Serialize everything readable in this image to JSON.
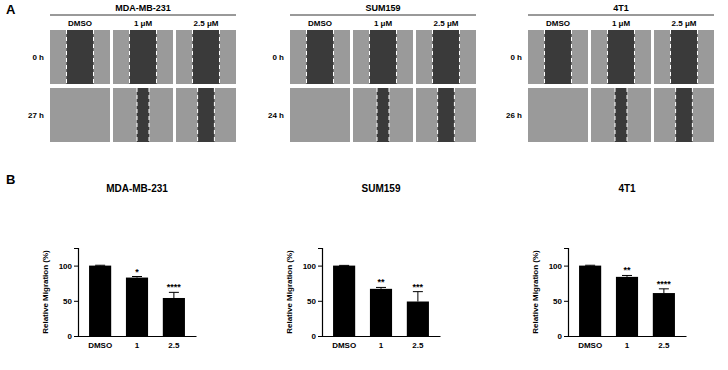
{
  "panel_labels": [
    "A",
    "B"
  ],
  "panel_a": [
    {
      "title": "MDA-MB-231",
      "columns": [
        "DMSO",
        "1 μM",
        "2.5 μM"
      ],
      "rows": [
        "0 h",
        "27 h"
      ]
    },
    {
      "title": "SUM159",
      "columns": [
        "DMSO",
        "1 μM",
        "2.5 μM"
      ],
      "rows": [
        "0 h",
        "24 h"
      ]
    },
    {
      "title": "4T1",
      "columns": [
        "DMSO",
        "1 μM",
        "2.5 μM"
      ],
      "rows": [
        "0 h",
        "26 h"
      ]
    }
  ],
  "chart_data": [
    {
      "type": "bar",
      "title": "MDA-MB-231",
      "y_label": "Relative Migration (%)",
      "categories": [
        "DMSO",
        "1",
        "2.5"
      ],
      "values": [
        100,
        83,
        54
      ],
      "errors": [
        0.5,
        1.5,
        8
      ],
      "significance": [
        null,
        "*",
        "****"
      ],
      "color": "#000000",
      "ylim": [
        0,
        125
      ],
      "yticks": [
        0,
        50,
        100
      ]
    },
    {
      "type": "bar",
      "title": "SUM159",
      "y_label": "Relative Migration (%)",
      "categories": [
        "DMSO",
        "1",
        "2.5"
      ],
      "values": [
        100,
        67,
        49
      ],
      "errors": [
        0.3,
        2,
        14
      ],
      "significance": [
        null,
        "**",
        "***"
      ],
      "color": "#000000",
      "ylim": [
        0,
        125
      ],
      "yticks": [
        0,
        50,
        100
      ]
    },
    {
      "type": "bar",
      "title": "4T1",
      "y_label": "Relative Migration (%)",
      "categories": [
        "DMSO",
        "1",
        "2.5"
      ],
      "values": [
        100,
        84,
        61
      ],
      "errors": [
        0.5,
        2,
        6
      ],
      "significance": [
        null,
        "**",
        "****"
      ],
      "color": "#000000",
      "ylim": [
        0,
        125
      ],
      "yticks": [
        0,
        50,
        100
      ]
    }
  ]
}
